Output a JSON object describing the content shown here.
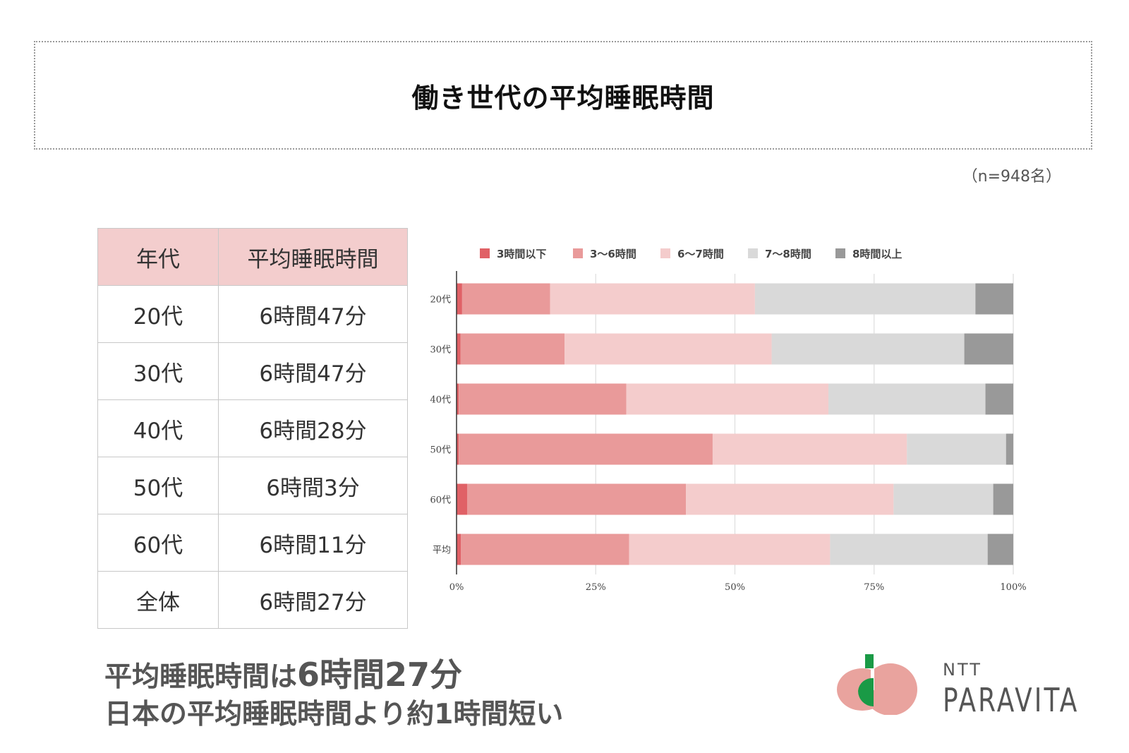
{
  "title": "働き世代の平均睡眠時間",
  "sample_size": "（n=948名）",
  "table": {
    "headers": [
      "年代",
      "平均睡眠時間"
    ],
    "rows": [
      [
        "20代",
        "6時間47分"
      ],
      [
        "30代",
        "6時間47分"
      ],
      [
        "40代",
        "6時間28分"
      ],
      [
        "50代",
        "6時間3分"
      ],
      [
        "60代",
        "6時間11分"
      ],
      [
        "全体",
        "6時間27分"
      ]
    ]
  },
  "summary": {
    "line1_prefix": "平均睡眠時間は",
    "line1_value": "6時間27分",
    "line2": "日本の平均睡眠時間より約1時間短い"
  },
  "logo": {
    "small": "NTT",
    "big": "PARAVITA",
    "colors": {
      "salmon": "#e9a39e",
      "green": "#1a9a46",
      "dark": "#555555"
    }
  },
  "chart_data": {
    "type": "bar",
    "orientation": "horizontal",
    "stacked": true,
    "percent": true,
    "categories": [
      "20代",
      "30代",
      "40代",
      "50代",
      "60代",
      "平均"
    ],
    "series": [
      {
        "name": "3時間以下",
        "color": "#e06166",
        "values": [
          1.0,
          0.7,
          0.4,
          0.4,
          1.9,
          0.8
        ]
      },
      {
        "name": "3～6時間",
        "color": "#e99a9a",
        "values": [
          15.8,
          18.7,
          30.1,
          45.6,
          39.3,
          30.2
        ]
      },
      {
        "name": "6～7時間",
        "color": "#f4cccc",
        "values": [
          36.8,
          37.2,
          36.3,
          34.9,
          37.3,
          36.1
        ]
      },
      {
        "name": "7～8時間",
        "color": "#d9d9d9",
        "values": [
          39.6,
          34.6,
          28.2,
          17.8,
          17.9,
          28.3
        ]
      },
      {
        "name": "8時間以上",
        "color": "#999999",
        "values": [
          6.8,
          8.8,
          5.0,
          1.3,
          3.6,
          4.6
        ]
      }
    ],
    "xlim": [
      0,
      100
    ],
    "xticks": [
      "0%",
      "25%",
      "50%",
      "75%",
      "100%"
    ],
    "grid": true,
    "legend": "top"
  }
}
